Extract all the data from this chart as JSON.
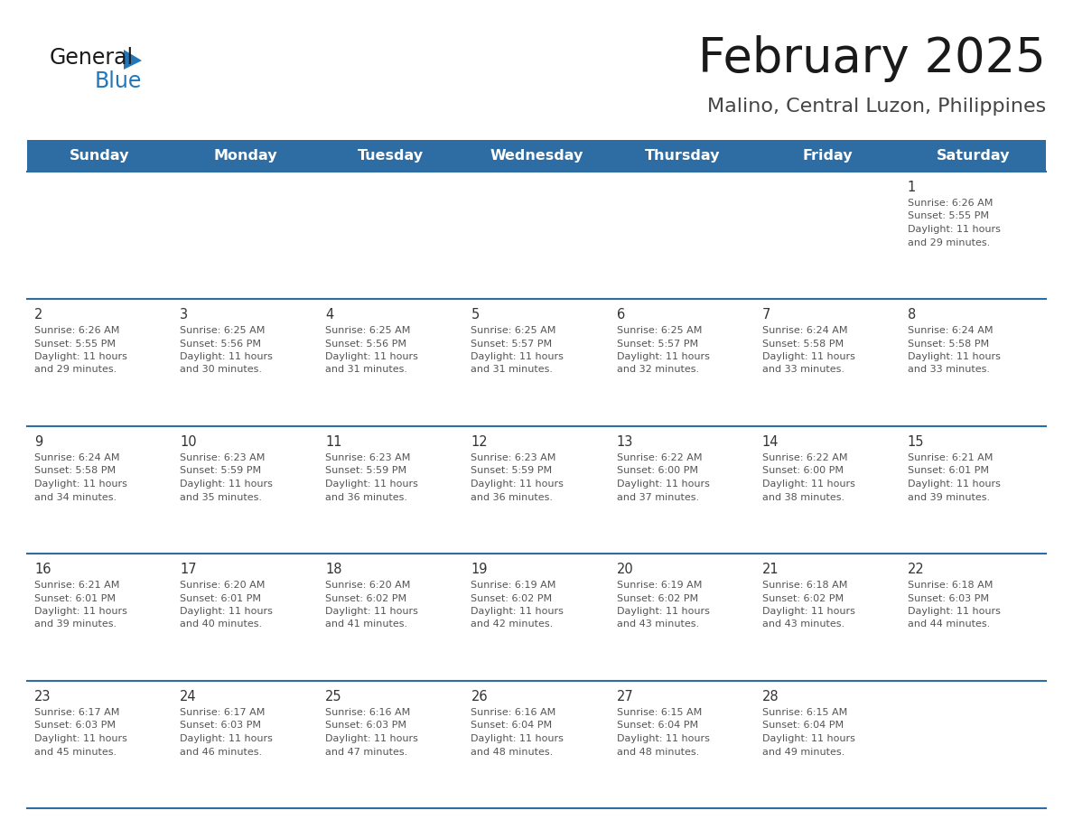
{
  "title": "February 2025",
  "subtitle": "Malino, Central Luzon, Philippines",
  "days_of_week": [
    "Sunday",
    "Monday",
    "Tuesday",
    "Wednesday",
    "Thursday",
    "Friday",
    "Saturday"
  ],
  "header_bg": "#2E6DA4",
  "header_text_color": "#FFFFFF",
  "cell_bg_white": "#FFFFFF",
  "cell_bg_gray": "#F0F0F0",
  "grid_line_color": "#2E6DA4",
  "text_color": "#555555",
  "day_num_color": "#333333",
  "title_color": "#1A1A1A",
  "subtitle_color": "#444444",
  "logo_general_color": "#1A1A1A",
  "logo_blue_color": "#2277BB",
  "weeks": [
    [
      null,
      null,
      null,
      null,
      null,
      null,
      1
    ],
    [
      2,
      3,
      4,
      5,
      6,
      7,
      8
    ],
    [
      9,
      10,
      11,
      12,
      13,
      14,
      15
    ],
    [
      16,
      17,
      18,
      19,
      20,
      21,
      22
    ],
    [
      23,
      24,
      25,
      26,
      27,
      28,
      null
    ]
  ],
  "cell_data": {
    "1": {
      "sunrise": "6:26 AM",
      "sunset": "5:55 PM",
      "daylight": "11 hours and 29 minutes."
    },
    "2": {
      "sunrise": "6:26 AM",
      "sunset": "5:55 PM",
      "daylight": "11 hours and 29 minutes."
    },
    "3": {
      "sunrise": "6:25 AM",
      "sunset": "5:56 PM",
      "daylight": "11 hours and 30 minutes."
    },
    "4": {
      "sunrise": "6:25 AM",
      "sunset": "5:56 PM",
      "daylight": "11 hours and 31 minutes."
    },
    "5": {
      "sunrise": "6:25 AM",
      "sunset": "5:57 PM",
      "daylight": "11 hours and 31 minutes."
    },
    "6": {
      "sunrise": "6:25 AM",
      "sunset": "5:57 PM",
      "daylight": "11 hours and 32 minutes."
    },
    "7": {
      "sunrise": "6:24 AM",
      "sunset": "5:58 PM",
      "daylight": "11 hours and 33 minutes."
    },
    "8": {
      "sunrise": "6:24 AM",
      "sunset": "5:58 PM",
      "daylight": "11 hours and 33 minutes."
    },
    "9": {
      "sunrise": "6:24 AM",
      "sunset": "5:58 PM",
      "daylight": "11 hours and 34 minutes."
    },
    "10": {
      "sunrise": "6:23 AM",
      "sunset": "5:59 PM",
      "daylight": "11 hours and 35 minutes."
    },
    "11": {
      "sunrise": "6:23 AM",
      "sunset": "5:59 PM",
      "daylight": "11 hours and 36 minutes."
    },
    "12": {
      "sunrise": "6:23 AM",
      "sunset": "5:59 PM",
      "daylight": "11 hours and 36 minutes."
    },
    "13": {
      "sunrise": "6:22 AM",
      "sunset": "6:00 PM",
      "daylight": "11 hours and 37 minutes."
    },
    "14": {
      "sunrise": "6:22 AM",
      "sunset": "6:00 PM",
      "daylight": "11 hours and 38 minutes."
    },
    "15": {
      "sunrise": "6:21 AM",
      "sunset": "6:01 PM",
      "daylight": "11 hours and 39 minutes."
    },
    "16": {
      "sunrise": "6:21 AM",
      "sunset": "6:01 PM",
      "daylight": "11 hours and 39 minutes."
    },
    "17": {
      "sunrise": "6:20 AM",
      "sunset": "6:01 PM",
      "daylight": "11 hours and 40 minutes."
    },
    "18": {
      "sunrise": "6:20 AM",
      "sunset": "6:02 PM",
      "daylight": "11 hours and 41 minutes."
    },
    "19": {
      "sunrise": "6:19 AM",
      "sunset": "6:02 PM",
      "daylight": "11 hours and 42 minutes."
    },
    "20": {
      "sunrise": "6:19 AM",
      "sunset": "6:02 PM",
      "daylight": "11 hours and 43 minutes."
    },
    "21": {
      "sunrise": "6:18 AM",
      "sunset": "6:02 PM",
      "daylight": "11 hours and 43 minutes."
    },
    "22": {
      "sunrise": "6:18 AM",
      "sunset": "6:03 PM",
      "daylight": "11 hours and 44 minutes."
    },
    "23": {
      "sunrise": "6:17 AM",
      "sunset": "6:03 PM",
      "daylight": "11 hours and 45 minutes."
    },
    "24": {
      "sunrise": "6:17 AM",
      "sunset": "6:03 PM",
      "daylight": "11 hours and 46 minutes."
    },
    "25": {
      "sunrise": "6:16 AM",
      "sunset": "6:03 PM",
      "daylight": "11 hours and 47 minutes."
    },
    "26": {
      "sunrise": "6:16 AM",
      "sunset": "6:04 PM",
      "daylight": "11 hours and 48 minutes."
    },
    "27": {
      "sunrise": "6:15 AM",
      "sunset": "6:04 PM",
      "daylight": "11 hours and 48 minutes."
    },
    "28": {
      "sunrise": "6:15 AM",
      "sunset": "6:04 PM",
      "daylight": "11 hours and 49 minutes."
    }
  }
}
